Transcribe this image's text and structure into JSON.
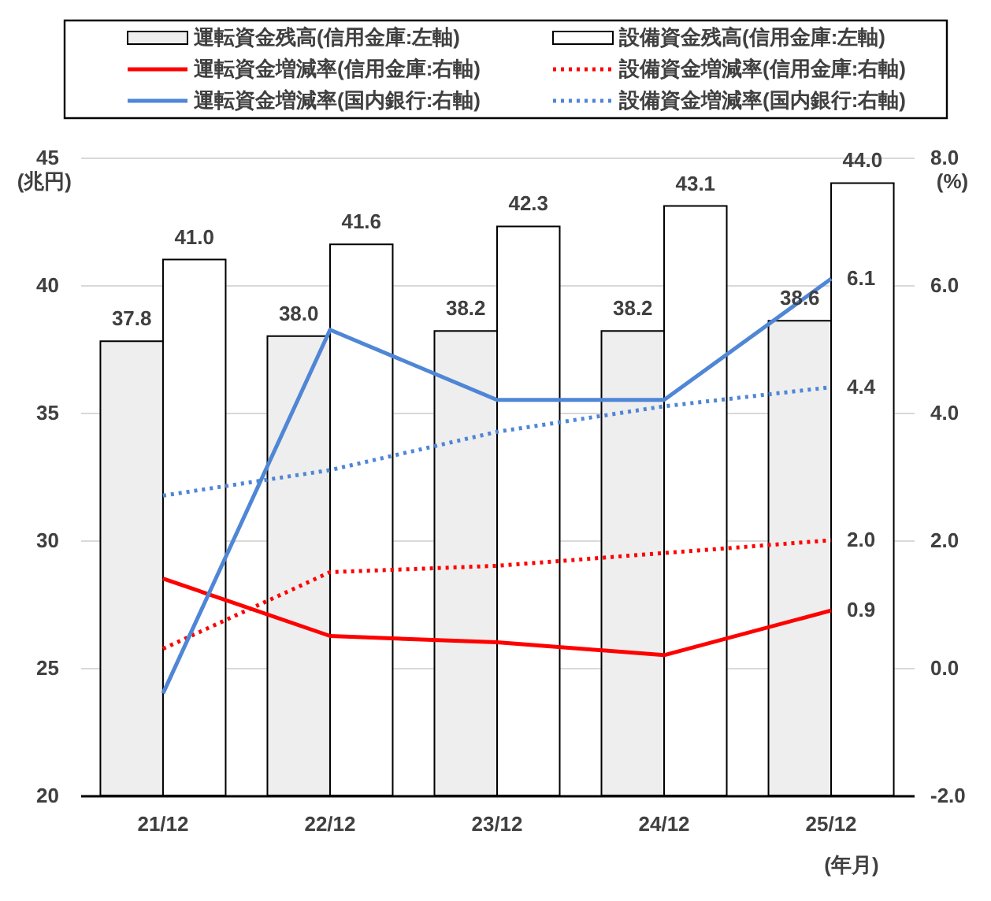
{
  "chart_data": {
    "type": "bar",
    "categories": [
      "21/12",
      "22/12",
      "23/12",
      "24/12",
      "25/12"
    ],
    "xlabel": "(年月)",
    "ylabel": "(兆円)",
    "y2label": "(%)",
    "ylim": [
      20,
      45
    ],
    "yticks": [
      20,
      25,
      30,
      35,
      40,
      45
    ],
    "y2lim": [
      -2,
      8
    ],
    "y2ticks": [
      {
        "value": -2,
        "label": "-2.0"
      },
      {
        "value": 0,
        "label": "0.0"
      },
      {
        "value": 2,
        "label": "2.0"
      },
      {
        "value": 4,
        "label": "4.0"
      },
      {
        "value": 6,
        "label": "6.0"
      },
      {
        "value": 8,
        "label": "8.0"
      }
    ],
    "grid": "y",
    "legend": "top",
    "marker": "none",
    "series": [
      {
        "name": "運転資金残高(信用金庫:左軸)",
        "color": "#eeeeee",
        "values": [
          37.8,
          38.0,
          38.2,
          38.2,
          38.6
        ],
        "value_labels": [
          "37.8",
          "38.0",
          "38.2",
          "38.2",
          "38.6"
        ]
      },
      {
        "name": "設備資金残高(信用金庫:左軸)",
        "color": "#ffffff",
        "values": [
          41.0,
          41.6,
          42.3,
          43.1,
          44.0
        ],
        "value_labels": [
          "41.0",
          "41.6",
          "42.3",
          "43.1",
          "44.0"
        ]
      },
      {
        "name": "運転資金増減率(信用金庫:右軸)",
        "type": "line",
        "axis": "y2",
        "line_style": "solid",
        "color": "#ff0000",
        "values": [
          1.4,
          0.5,
          0.4,
          0.2,
          0.9
        ],
        "value_labels": [
          null,
          null,
          null,
          null,
          "0.9"
        ]
      },
      {
        "name": "設備資金増減率(信用金庫:右軸)",
        "type": "line",
        "axis": "y2",
        "line_style": "dotted",
        "color": "#ff0000",
        "values": [
          0.3,
          1.5,
          1.6,
          1.8,
          2.0
        ],
        "value_labels": [
          null,
          null,
          null,
          null,
          "2.0"
        ]
      },
      {
        "name": "運転資金増減率(国内銀行:右軸)",
        "type": "line",
        "axis": "y2",
        "line_style": "solid",
        "color": "#4f86d6",
        "values": [
          -0.4,
          5.3,
          4.2,
          4.2,
          6.1
        ],
        "value_labels": [
          null,
          null,
          null,
          null,
          "6.1"
        ]
      },
      {
        "name": "設備資金増減率(国内銀行:右軸)",
        "type": "line",
        "axis": "y2",
        "line_style": "dotted",
        "color": "#4f86d6",
        "values": [
          2.7,
          3.1,
          3.7,
          4.1,
          4.4
        ],
        "value_labels": [
          null,
          null,
          null,
          null,
          "4.4"
        ]
      }
    ]
  }
}
